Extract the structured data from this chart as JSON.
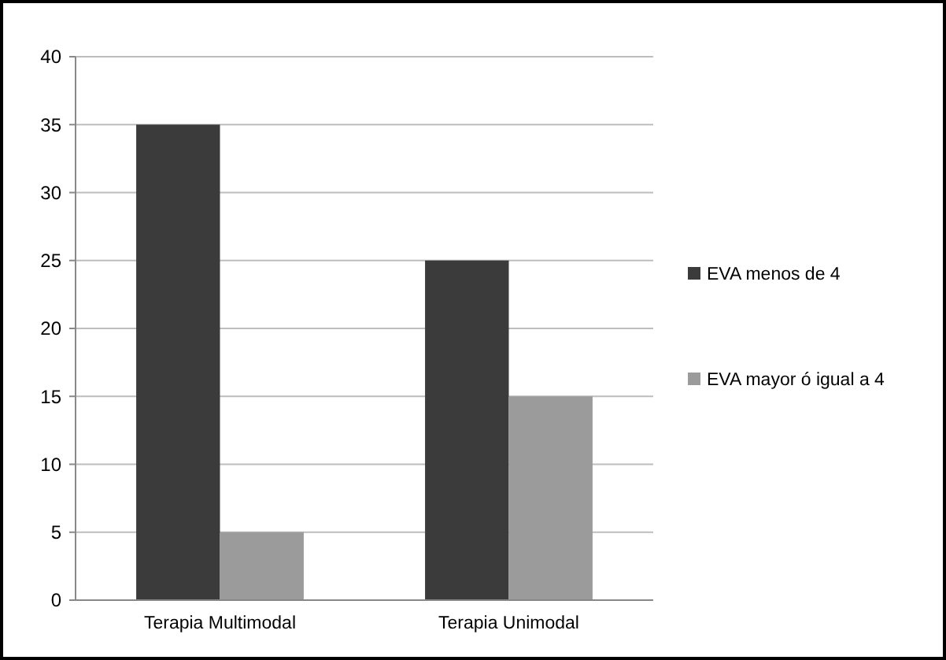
{
  "chart_data": {
    "type": "bar",
    "categories": [
      "Terapia Multimodal",
      "Terapia Unimodal"
    ],
    "series": [
      {
        "name": "EVA menos de 4",
        "color": "#3b3b3b",
        "values": [
          35,
          25
        ]
      },
      {
        "name": "EVA mayor ó igual a 4",
        "color": "#9b9b9b",
        "values": [
          5,
          15
        ]
      }
    ],
    "ylim": [
      0,
      40
    ],
    "yticks": [
      0,
      5,
      10,
      15,
      20,
      25,
      30,
      35,
      40
    ],
    "grid": "y",
    "legend": "right"
  }
}
